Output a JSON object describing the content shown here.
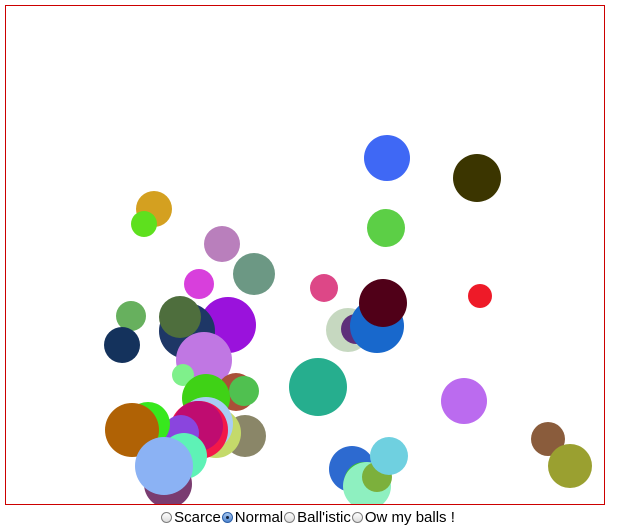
{
  "controls": {
    "options": [
      {
        "label": "Scarce",
        "checked": false
      },
      {
        "label": "Normal",
        "checked": true
      },
      {
        "label": "Ball'istic",
        "checked": false
      },
      {
        "label": "Ow my balls !",
        "checked": false
      }
    ]
  },
  "colors": {
    "frame_border": "#cc0000"
  },
  "balls": [
    {
      "color": "#3f68f5"
    },
    {
      "color": "#3b3500"
    },
    {
      "color": "#d4a020"
    },
    {
      "color": "#5ccf46"
    },
    {
      "color": "#5ee01e"
    },
    {
      "color": "#b97fbc"
    },
    {
      "color": "#6c9884"
    },
    {
      "color": "#d83fdc"
    },
    {
      "color": "#dd4787"
    },
    {
      "color": "#ee1a28"
    },
    {
      "color": "#c6d8c0"
    },
    {
      "color": "#5e2f7a"
    },
    {
      "color": "#1868cc"
    },
    {
      "color": "#500018"
    },
    {
      "color": "#67b05e"
    },
    {
      "color": "#9a12dc"
    },
    {
      "color": "#1e3766"
    },
    {
      "color": "#4e6e3d"
    },
    {
      "color": "#14325c"
    },
    {
      "color": "#c077e3"
    },
    {
      "color": "#7ff08b"
    },
    {
      "color": "#26ae8e"
    },
    {
      "color": "#bb6bef"
    },
    {
      "color": "#a95038"
    },
    {
      "color": "#50c050"
    },
    {
      "color": "#3fd216"
    },
    {
      "color": "#8a8668"
    },
    {
      "color": "#c4da6a"
    },
    {
      "color": "#a8cdf4"
    },
    {
      "color": "#f2184a"
    },
    {
      "color": "#bf0c70"
    },
    {
      "color": "#8a45de"
    },
    {
      "color": "#37e81d"
    },
    {
      "color": "#b06205"
    },
    {
      "color": "#5ef2b6"
    },
    {
      "color": "#7a3c70"
    },
    {
      "color": "#8bb2f4"
    },
    {
      "color": "#8a5c3c"
    },
    {
      "color": "#9aa030"
    },
    {
      "color": "#2d6ad0"
    },
    {
      "color": "#3ec034"
    },
    {
      "color": "#8ef0c0"
    },
    {
      "color": "#7cb03c"
    },
    {
      "color": "#6fd0e0"
    }
  ]
}
